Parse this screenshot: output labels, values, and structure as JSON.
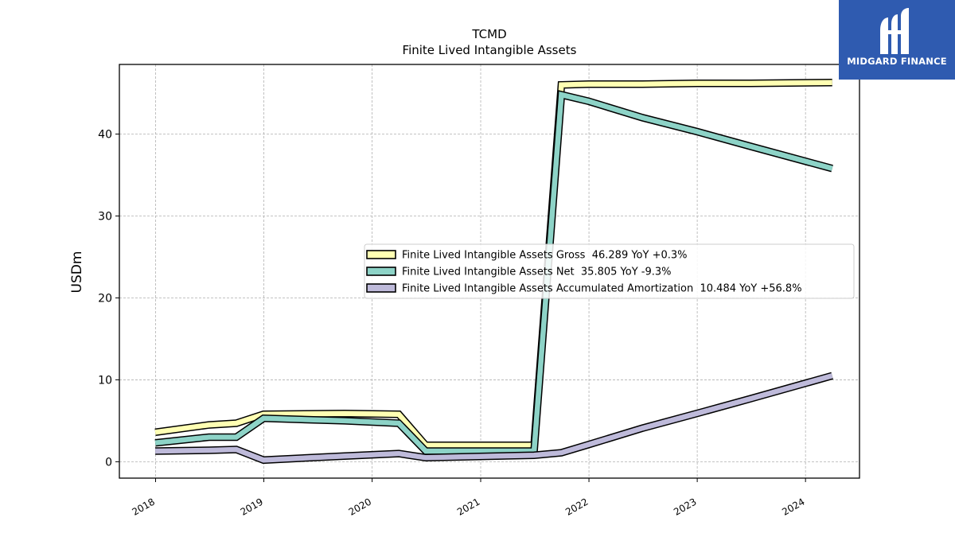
{
  "chart_data": {
    "type": "line",
    "title": "TCMD",
    "subtitle": "Finite Lived Intangible Assets",
    "ylabel": "USDm",
    "xlabel": "",
    "xlim": [
      "2017-09-01",
      "2024-07-01"
    ],
    "ylim": [
      -2,
      48.5
    ],
    "yticks": [
      0,
      10,
      20,
      30,
      40
    ],
    "xticks": [
      "2018",
      "2019",
      "2020",
      "2021",
      "2022",
      "2023",
      "2024"
    ],
    "grid": true,
    "legend_position": "center-right",
    "series": [
      {
        "name": "Finite Lived Intangible Assets Gross  46.289 YoY +0.3%",
        "color": "#ffffb3",
        "points": [
          [
            "2017-12-31",
            3.6
          ],
          [
            "2018-06-30",
            4.5
          ],
          [
            "2018-09-30",
            4.7
          ],
          [
            "2018-12-31",
            5.8
          ],
          [
            "2019-09-30",
            5.9
          ],
          [
            "2020-03-31",
            5.8
          ],
          [
            "2020-06-30",
            2.0
          ],
          [
            "2021-06-30",
            2.0
          ],
          [
            "2021-09-30",
            46.0
          ],
          [
            "2021-12-31",
            46.1
          ],
          [
            "2022-06-30",
            46.1
          ],
          [
            "2022-12-31",
            46.2
          ],
          [
            "2023-06-30",
            46.2
          ],
          [
            "2024-03-31",
            46.3
          ]
        ]
      },
      {
        "name": "Finite Lived Intangible Assets Net  35.805 YoY -9.3%",
        "color": "#8dd3c7",
        "points": [
          [
            "2017-12-31",
            2.3
          ],
          [
            "2018-06-30",
            3.0
          ],
          [
            "2018-09-30",
            3.0
          ],
          [
            "2018-12-31",
            5.3
          ],
          [
            "2019-09-30",
            5.0
          ],
          [
            "2020-03-31",
            4.7
          ],
          [
            "2020-06-30",
            1.3
          ],
          [
            "2021-06-30",
            1.3
          ],
          [
            "2021-09-30",
            44.8
          ],
          [
            "2021-12-31",
            44.0
          ],
          [
            "2022-06-30",
            42.0
          ],
          [
            "2022-12-31",
            40.3
          ],
          [
            "2023-06-30",
            38.5
          ],
          [
            "2024-03-31",
            35.8
          ]
        ]
      },
      {
        "name": "Finite Lived Intangible Assets Accumulated Amortization  10.484 YoY +56.8%",
        "color": "#bebada",
        "points": [
          [
            "2017-12-31",
            1.3
          ],
          [
            "2018-06-30",
            1.4
          ],
          [
            "2018-09-30",
            1.5
          ],
          [
            "2018-12-31",
            0.2
          ],
          [
            "2019-09-30",
            0.7
          ],
          [
            "2020-03-31",
            1.0
          ],
          [
            "2020-06-30",
            0.5
          ],
          [
            "2021-06-30",
            0.8
          ],
          [
            "2021-09-30",
            1.1
          ],
          [
            "2021-12-31",
            2.1
          ],
          [
            "2022-06-30",
            4.1
          ],
          [
            "2022-12-31",
            5.9
          ],
          [
            "2023-06-30",
            7.7
          ],
          [
            "2024-03-31",
            10.5
          ]
        ]
      }
    ]
  },
  "logo": {
    "text": "MIDGARD FINANCE"
  }
}
